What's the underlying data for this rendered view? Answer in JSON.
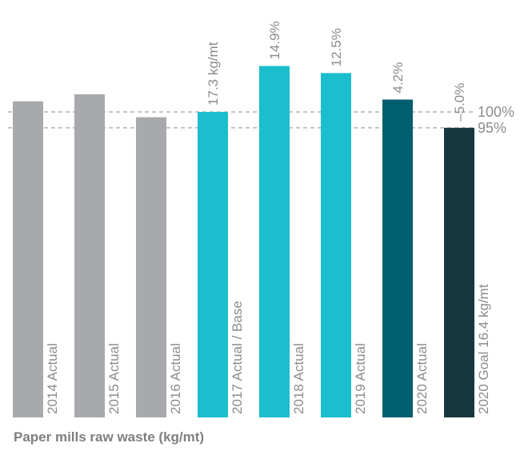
{
  "chart_data": {
    "type": "bar",
    "title": "",
    "xlabel": "Paper mills raw waste (kg/mt)",
    "ylabel": "",
    "categories": [
      "2014 Actual",
      "2015 Actual",
      "2016 Actual",
      "2017 Actual / Base",
      "2018 Actual",
      "2019 Actual",
      "2020 Actual",
      "2020 Goal 16.4 kg/mt"
    ],
    "values": [
      17.9,
      18.3,
      17.0,
      17.3,
      19.9,
      19.5,
      18.0,
      16.4
    ],
    "top_labels": [
      "",
      "",
      "",
      "17.3 kg/mt",
      "14.9%",
      "12.5%",
      "4.2%",
      "–5.0%"
    ],
    "colors": [
      "#a7a9ac",
      "#a7a9ac",
      "#a7a9ac",
      "#1bbecc",
      "#1bbecc",
      "#1bbecc",
      "#005f6e",
      "#18363f"
    ],
    "ylim": [
      0,
      21.6
    ],
    "reference_lines": [
      {
        "label": "100%",
        "value": 17.3
      },
      {
        "label": "95%",
        "value": 16.4
      }
    ],
    "grid": false,
    "legend": "none"
  }
}
